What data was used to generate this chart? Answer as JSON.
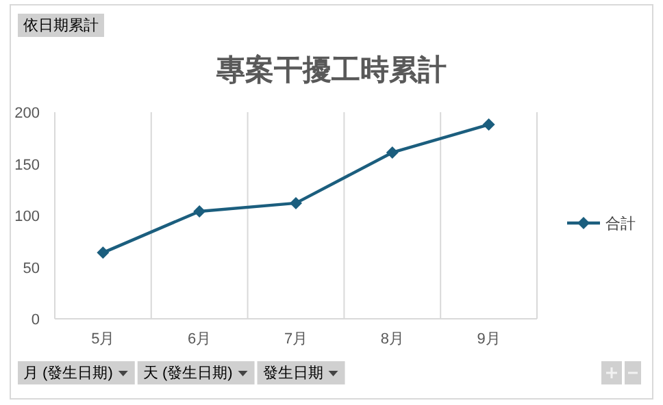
{
  "chart_data": {
    "type": "line",
    "title": "專案干擾工時累計",
    "categories": [
      "5月",
      "6月",
      "7月",
      "8月",
      "9月"
    ],
    "series": [
      {
        "name": "合計",
        "color": "#1b5e7e",
        "values": [
          64,
          104,
          112,
          161,
          188
        ]
      }
    ],
    "ylim": [
      0,
      200
    ],
    "yticks": [
      0,
      50,
      100,
      150,
      200
    ],
    "grid": "x",
    "legend": "right",
    "marker": "diamond",
    "line_style": "solid",
    "annotations": [
      "依日期累計",
      "月 (發生日期)",
      "天 (發生日期)",
      "發生日期"
    ]
  }
}
